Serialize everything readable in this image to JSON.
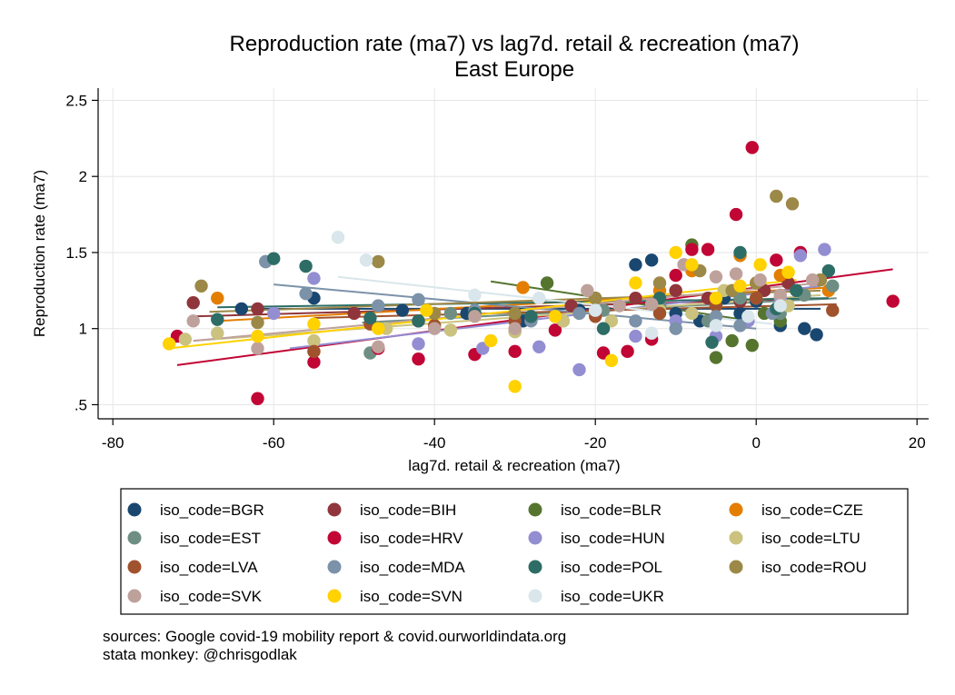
{
  "chart_data": {
    "type": "scatter",
    "title": "Reproduction rate (ma7) vs lag7d. retail & recreation (ma7)",
    "subtitle": "East Europe",
    "xlabel": "lag7d. retail & recreation (ma7)",
    "ylabel": "Reproduction rate (ma7)",
    "xlim": [
      -81,
      22
    ],
    "ylim": [
      0.45,
      2.6
    ],
    "x_ticks": [
      {
        "value": -80,
        "label": "-80"
      },
      {
        "value": -60,
        "label": "-60"
      },
      {
        "value": -40,
        "label": "-40"
      },
      {
        "value": -20,
        "label": "-20"
      },
      {
        "value": 0,
        "label": "0"
      },
      {
        "value": 20,
        "label": "20"
      }
    ],
    "y_ticks": [
      {
        "value": 0.5,
        "label": ".5"
      },
      {
        "value": 1,
        "label": "1"
      },
      {
        "value": 1.5,
        "label": "1.5"
      },
      {
        "value": 2,
        "label": "2"
      },
      {
        "value": 2.5,
        "label": "2.5"
      }
    ],
    "grid": true,
    "legend_position": "bottom",
    "series": [
      {
        "name": "iso_code=BGR",
        "color": "#1a476f",
        "points": [
          [
            -55,
            1.2
          ],
          [
            -64,
            1.13
          ],
          [
            -44,
            1.12
          ],
          [
            -36,
            1.1
          ],
          [
            -29,
            1.05
          ],
          [
            -22,
            1.12
          ],
          [
            -15,
            1.42
          ],
          [
            -13,
            1.45
          ],
          [
            -10,
            1.1
          ],
          [
            -7,
            1.05
          ],
          [
            -4,
            1.2
          ],
          [
            -2,
            1.1
          ],
          [
            0,
            1.18
          ],
          [
            3,
            1.02
          ],
          [
            6,
            1
          ],
          [
            7.5,
            0.96
          ]
        ],
        "trend": [
          [
            -62,
            1.13
          ],
          [
            8,
            1.13
          ]
        ]
      },
      {
        "name": "iso_code=BIH",
        "color": "#90353b",
        "points": [
          [
            -70,
            1.17
          ],
          [
            -62,
            1.13
          ],
          [
            -50,
            1.1
          ],
          [
            -42,
            1.05
          ],
          [
            -35,
            1.1
          ],
          [
            -28,
            1.06
          ],
          [
            -23,
            1.15
          ],
          [
            -15,
            1.2
          ],
          [
            -10,
            1.25
          ],
          [
            -6,
            1.2
          ],
          [
            -2,
            1.18
          ],
          [
            1,
            1.25
          ],
          [
            4,
            1.3
          ]
        ],
        "trend": [
          [
            -70,
            1.08
          ],
          [
            9,
            1.2
          ]
        ]
      },
      {
        "name": "iso_code=BLR",
        "color": "#55752f",
        "points": [
          [
            -26,
            1.3
          ],
          [
            -20,
            1.2
          ],
          [
            -12,
            1.15
          ],
          [
            -8,
            1.55
          ],
          [
            -5,
            0.81
          ],
          [
            -3,
            0.92
          ],
          [
            -0.5,
            0.89
          ],
          [
            1,
            1.1
          ],
          [
            3,
            1.05
          ]
        ],
        "trend": [
          [
            -33,
            1.31
          ],
          [
            -0.5,
            1.05
          ]
        ]
      },
      {
        "name": "iso_code=CZE",
        "color": "#e37e00",
        "points": [
          [
            -67,
            1.2
          ],
          [
            -55,
            0.85
          ],
          [
            -29,
            1.27
          ],
          [
            -12,
            1.25
          ],
          [
            -8,
            1.38
          ],
          [
            -2,
            1.48
          ],
          [
            3,
            1.35
          ],
          [
            9,
            1.25
          ]
        ],
        "trend": [
          [
            -67,
            1.05
          ],
          [
            9,
            1.27
          ]
        ]
      },
      {
        "name": "iso_code=EST",
        "color": "#6e8e84",
        "points": [
          [
            -61,
            1.44
          ],
          [
            -48,
            0.84
          ],
          [
            -38,
            1.1
          ],
          [
            -30,
            0.98
          ],
          [
            -24,
            1.05
          ],
          [
            -19,
            1.12
          ],
          [
            -12,
            1.15
          ],
          [
            -6,
            1.05
          ],
          [
            -2,
            1.2
          ],
          [
            3,
            1.1
          ],
          [
            6,
            1.22
          ],
          [
            9.5,
            1.28
          ]
        ],
        "trend": [
          [
            -49,
            1.04
          ],
          [
            10,
            1.2
          ]
        ]
      },
      {
        "name": "iso_code=HRV",
        "color": "#c10534",
        "points": [
          [
            -72,
            0.95
          ],
          [
            -62,
            0.54
          ],
          [
            -55,
            0.78
          ],
          [
            -47,
            0.87
          ],
          [
            -42,
            0.8
          ],
          [
            -35,
            0.83
          ],
          [
            -30,
            0.85
          ],
          [
            -25,
            0.99
          ],
          [
            -19,
            0.84
          ],
          [
            -16,
            0.85
          ],
          [
            -13,
            0.93
          ],
          [
            -10,
            1.35
          ],
          [
            -8,
            1.52
          ],
          [
            -6,
            1.52
          ],
          [
            -2.5,
            1.75
          ],
          [
            -0.5,
            2.19
          ],
          [
            2.5,
            1.45
          ],
          [
            5.5,
            1.5
          ],
          [
            17,
            1.18
          ]
        ],
        "trend": [
          [
            -72,
            0.76
          ],
          [
            17,
            1.39
          ]
        ]
      },
      {
        "name": "iso_code=HUN",
        "color": "#938dd2",
        "points": [
          [
            -60,
            1.1
          ],
          [
            -55,
            1.33
          ],
          [
            -42,
            0.9
          ],
          [
            -34,
            0.87
          ],
          [
            -27,
            0.88
          ],
          [
            -22,
            0.73
          ],
          [
            -15,
            0.95
          ],
          [
            -10,
            1.05
          ],
          [
            -5,
            0.95
          ],
          [
            -1,
            1.05
          ],
          [
            3,
            1.2
          ],
          [
            5.5,
            1.48
          ],
          [
            8.5,
            1.52
          ]
        ],
        "trend": [
          [
            -58,
            0.87
          ],
          [
            8,
            1.28
          ]
        ]
      },
      {
        "name": "iso_code=LTU",
        "color": "#cac27e",
        "points": [
          [
            -71,
            0.93
          ],
          [
            -67,
            0.97
          ],
          [
            -55,
            0.92
          ],
          [
            -46,
            1.0
          ],
          [
            -38,
            0.99
          ],
          [
            -30,
            0.98
          ],
          [
            -24,
            1.05
          ],
          [
            -18,
            1.05
          ],
          [
            -12,
            1.12
          ],
          [
            -8,
            1.1
          ],
          [
            -4,
            1.25
          ],
          [
            0,
            1.2
          ],
          [
            4,
            1.15
          ]
        ],
        "trend": [
          [
            -70,
            0.92
          ],
          [
            8,
            1.22
          ]
        ]
      },
      {
        "name": "iso_code=LVA",
        "color": "#a0522d",
        "points": [
          [
            -55,
            0.85
          ],
          [
            -48,
            1.03
          ],
          [
            -40,
            1.02
          ],
          [
            -30,
            1.05
          ],
          [
            -20,
            1.08
          ],
          [
            -12,
            1.1
          ],
          [
            -5,
            1.15
          ],
          [
            0,
            1.2
          ],
          [
            5,
            1.25
          ],
          [
            9.5,
            1.12
          ]
        ],
        "trend": [
          [
            -55,
            1.07
          ],
          [
            10,
            1.16
          ]
        ]
      },
      {
        "name": "iso_code=MDA",
        "color": "#7b92a8",
        "points": [
          [
            -61,
            1.44
          ],
          [
            -56,
            1.23
          ],
          [
            -47,
            1.15
          ],
          [
            -42,
            1.19
          ],
          [
            -35,
            1.12
          ],
          [
            -28,
            1.05
          ],
          [
            -22,
            1.1
          ],
          [
            -15,
            1.05
          ],
          [
            -10,
            1.0
          ],
          [
            -5,
            1.08
          ],
          [
            -2,
            1.02
          ],
          [
            2,
            1.1
          ]
        ],
        "trend": [
          [
            -60,
            1.29
          ],
          [
            0,
            1.0
          ]
        ]
      },
      {
        "name": "iso_code=POL",
        "color": "#2d6d66",
        "points": [
          [
            -67,
            1.06
          ],
          [
            -60,
            1.46
          ],
          [
            -56,
            1.41
          ],
          [
            -48,
            1.07
          ],
          [
            -42,
            1.05
          ],
          [
            -35,
            1.1
          ],
          [
            -28,
            1.08
          ],
          [
            -19,
            1.0
          ],
          [
            -12,
            1.2
          ],
          [
            -5.5,
            0.91
          ],
          [
            -2,
            1.5
          ],
          [
            2.5,
            1.13
          ],
          [
            5,
            1.25
          ],
          [
            9,
            1.38
          ]
        ],
        "trend": [
          [
            -67,
            1.14
          ],
          [
            9,
            1.2
          ]
        ]
      },
      {
        "name": "iso_code=ROU",
        "color": "#9c8847",
        "points": [
          [
            -69,
            1.28
          ],
          [
            -62,
            1.04
          ],
          [
            -47,
            1.44
          ],
          [
            -40,
            1.1
          ],
          [
            -30,
            1.1
          ],
          [
            -20,
            1.2
          ],
          [
            -12,
            1.3
          ],
          [
            -7,
            1.38
          ],
          [
            -3,
            1.25
          ],
          [
            0,
            1.3
          ],
          [
            2.5,
            1.87
          ],
          [
            4.5,
            1.82
          ],
          [
            8,
            1.32
          ]
        ],
        "trend": [
          [
            -68,
            1.11
          ],
          [
            8,
            1.25
          ]
        ]
      },
      {
        "name": "iso_code=SVK",
        "color": "#bfa19c",
        "points": [
          [
            -70,
            1.05
          ],
          [
            -62,
            0.87
          ],
          [
            -47,
            0.88
          ],
          [
            -40,
            1.0
          ],
          [
            -35,
            1.08
          ],
          [
            -30,
            1.0
          ],
          [
            -25,
            1.08
          ],
          [
            -21,
            1.25
          ],
          [
            -17,
            1.15
          ],
          [
            -13,
            1.16
          ],
          [
            -9,
            1.42
          ],
          [
            -5,
            1.34
          ],
          [
            -2.5,
            1.36
          ],
          [
            0.5,
            1.32
          ],
          [
            3,
            1.22
          ],
          [
            7,
            1.32
          ]
        ],
        "trend": [
          [
            -70,
            0.92
          ],
          [
            8,
            1.3
          ]
        ]
      },
      {
        "name": "iso_code=SVN",
        "color": "#ffd200",
        "points": [
          [
            -73,
            0.9
          ],
          [
            -62,
            0.95
          ],
          [
            -55,
            1.03
          ],
          [
            -47,
            1.0
          ],
          [
            -41,
            1.12
          ],
          [
            -33,
            0.92
          ],
          [
            -30,
            0.62
          ],
          [
            -25,
            1.08
          ],
          [
            -18,
            0.79
          ],
          [
            -15,
            1.3
          ],
          [
            -10,
            1.5
          ],
          [
            -8,
            1.42
          ],
          [
            -5,
            1.2
          ],
          [
            -2,
            1.28
          ],
          [
            0.5,
            1.42
          ],
          [
            4,
            1.37
          ]
        ],
        "trend": [
          [
            -73,
            0.87
          ],
          [
            5,
            1.32
          ]
        ]
      },
      {
        "name": "iso_code=UKR",
        "color": "#d9e6eb",
        "points": [
          [
            -52,
            1.6
          ],
          [
            -48.5,
            1.45
          ],
          [
            -35,
            1.22
          ],
          [
            -27,
            1.2
          ],
          [
            -20,
            1.12
          ],
          [
            -13,
            0.97
          ],
          [
            -5,
            1.02
          ],
          [
            -1,
            1.08
          ],
          [
            3,
            1.15
          ]
        ],
        "trend": [
          [
            -52,
            1.34
          ],
          [
            2,
            1.03
          ]
        ]
      }
    ]
  },
  "source_lines": [
    "sources: Google covid-19 mobility report & covid.ourworldindata.org",
    "stata monkey: @chrisgodlak"
  ]
}
